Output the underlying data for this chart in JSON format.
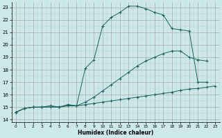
{
  "bg_color": "#cce8e8",
  "grid_color_major": "#aaaaaa",
  "grid_color_minor": "#bbcccc",
  "line_color": "#1a6060",
  "marker": "+",
  "xlabel": "Humidex (Indice chaleur)",
  "xlim": [
    -0.5,
    23.5
  ],
  "ylim": [
    13.8,
    23.4
  ],
  "yticks": [
    14,
    15,
    16,
    17,
    18,
    19,
    20,
    21,
    22,
    23
  ],
  "xticks": [
    0,
    1,
    2,
    3,
    4,
    5,
    6,
    7,
    8,
    9,
    10,
    11,
    12,
    13,
    14,
    15,
    16,
    17,
    18,
    19,
    20,
    21,
    22,
    23
  ],
  "curve1_x": [
    0,
    1,
    2,
    3,
    4,
    5,
    6,
    7,
    8,
    9,
    10,
    11,
    12,
    13,
    14,
    15,
    16,
    17,
    18,
    19,
    20,
    21,
    22
  ],
  "curve1_y": [
    14.6,
    14.9,
    15.0,
    15.0,
    15.1,
    15.0,
    15.2,
    15.1,
    18.1,
    18.8,
    21.5,
    22.2,
    22.6,
    23.1,
    23.1,
    22.9,
    22.6,
    22.4,
    21.3,
    21.2,
    21.1,
    17.0,
    17.0
  ],
  "curve2_x": [
    0,
    1,
    2,
    3,
    4,
    5,
    6,
    7,
    8,
    9,
    10,
    11,
    12,
    13,
    14,
    15,
    16,
    17,
    18,
    19,
    20,
    21,
    22
  ],
  "curve2_y": [
    14.6,
    14.9,
    15.0,
    15.0,
    15.1,
    15.0,
    15.2,
    15.1,
    15.4,
    15.8,
    16.3,
    16.8,
    17.3,
    17.8,
    18.3,
    18.7,
    19.0,
    19.3,
    19.5,
    19.5,
    19.0,
    18.8,
    18.7
  ],
  "curve3_x": [
    0,
    1,
    2,
    3,
    4,
    5,
    6,
    7,
    8,
    9,
    10,
    11,
    12,
    13,
    14,
    15,
    16,
    17,
    18,
    19,
    20,
    21,
    22,
    23
  ],
  "curve3_y": [
    14.6,
    14.9,
    15.0,
    15.0,
    15.0,
    15.0,
    15.1,
    15.1,
    15.2,
    15.3,
    15.4,
    15.5,
    15.6,
    15.7,
    15.8,
    15.9,
    16.0,
    16.1,
    16.2,
    16.35,
    16.45,
    16.5,
    16.6,
    16.7
  ]
}
